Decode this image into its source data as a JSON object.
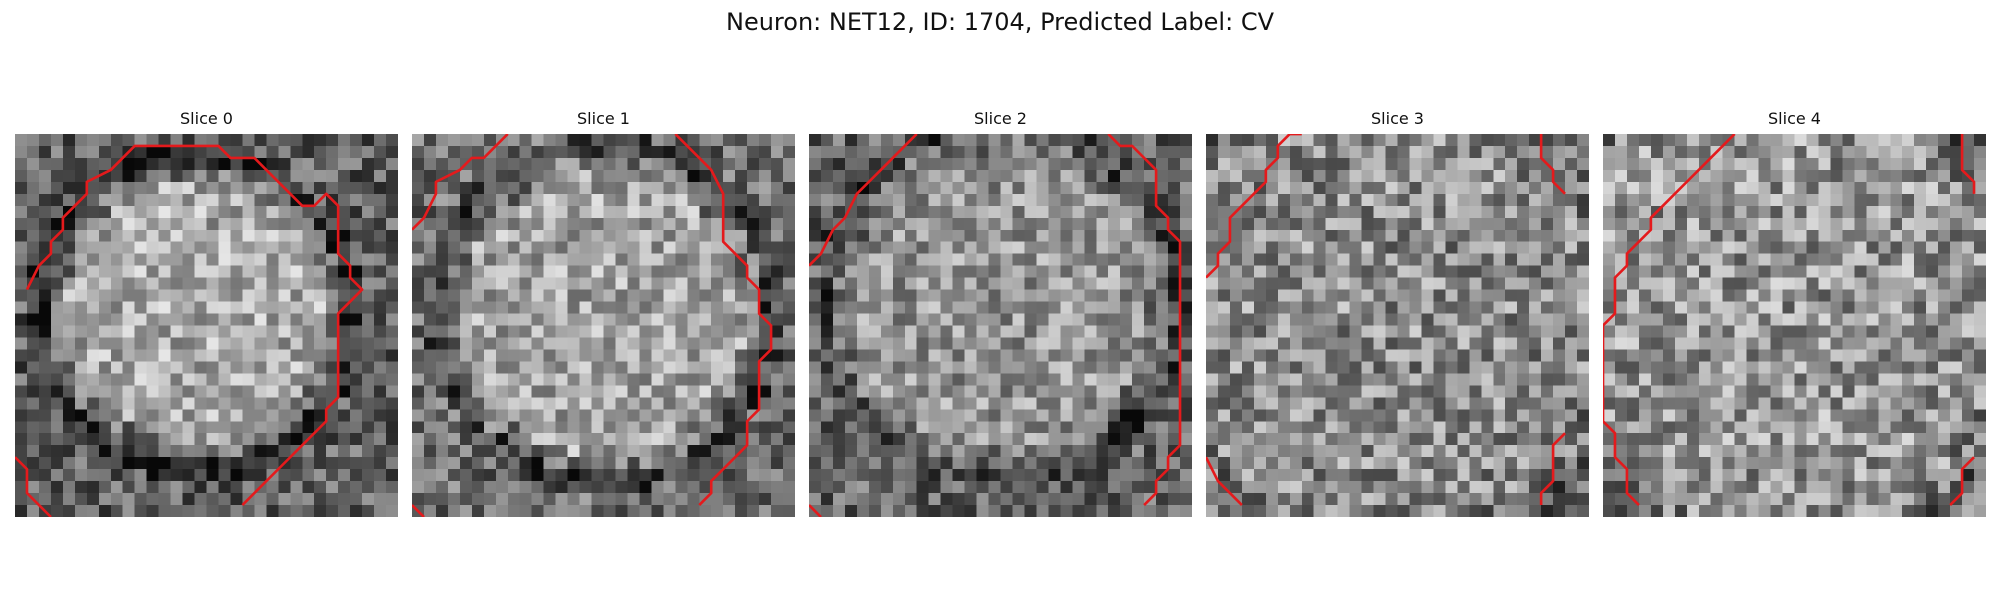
{
  "figure": {
    "title": "Neuron: NET12, ID: 1704, Predicted Label: CV",
    "contour_color": "#e41a1c",
    "grid_size": 32,
    "colormap": "gray"
  },
  "panels": [
    {
      "label": "Slice 0",
      "contours": [
        [
          [
            1,
            13
          ],
          [
            2,
            11
          ],
          [
            3,
            10
          ],
          [
            3,
            9
          ],
          [
            4,
            8
          ],
          [
            4,
            7
          ],
          [
            5,
            6
          ],
          [
            6,
            5
          ],
          [
            6,
            4
          ],
          [
            8,
            3
          ],
          [
            9,
            2
          ],
          [
            10,
            1
          ],
          [
            17,
            1
          ],
          [
            18,
            2
          ],
          [
            20,
            2
          ],
          [
            21,
            3
          ],
          [
            23,
            5
          ],
          [
            24,
            6
          ],
          [
            25,
            6
          ],
          [
            26,
            5
          ],
          [
            27,
            6
          ],
          [
            27,
            10
          ],
          [
            28,
            11
          ],
          [
            28,
            12
          ],
          [
            29,
            13
          ],
          [
            28,
            14
          ],
          [
            27,
            15
          ],
          [
            27,
            22
          ],
          [
            26,
            23
          ],
          [
            26,
            24
          ],
          [
            19,
            31
          ]
        ],
        [
          [
            0,
            27
          ],
          [
            1,
            28
          ],
          [
            1,
            30
          ],
          [
            3,
            32
          ]
        ]
      ]
    },
    {
      "label": "Slice 1",
      "contours": [
        [
          [
            0,
            8
          ],
          [
            1,
            7
          ],
          [
            2,
            5
          ],
          [
            2,
            4
          ],
          [
            4,
            3
          ],
          [
            5,
            2
          ],
          [
            6,
            2
          ],
          [
            8,
            0
          ]
        ],
        [
          [
            22,
            0
          ],
          [
            24,
            2
          ],
          [
            25,
            3
          ],
          [
            26,
            5
          ],
          [
            26,
            9
          ],
          [
            27,
            10
          ],
          [
            28,
            11
          ],
          [
            28,
            12
          ],
          [
            29,
            13
          ],
          [
            29,
            15
          ],
          [
            30,
            16
          ],
          [
            30,
            18
          ],
          [
            29,
            19
          ],
          [
            29,
            23
          ],
          [
            28,
            24
          ],
          [
            28,
            26
          ],
          [
            27,
            27
          ],
          [
            26,
            28
          ],
          [
            25,
            29
          ],
          [
            25,
            30
          ],
          [
            24,
            31
          ]
        ],
        [
          [
            0,
            31
          ],
          [
            1,
            32
          ]
        ]
      ]
    },
    {
      "label": "Slice 2",
      "contours": [
        [
          [
            0,
            11
          ],
          [
            1,
            10
          ],
          [
            2,
            8
          ],
          [
            3,
            7
          ],
          [
            4,
            5
          ],
          [
            5,
            4
          ],
          [
            6,
            3
          ],
          [
            7,
            2
          ],
          [
            8,
            1
          ],
          [
            9,
            0
          ]
        ],
        [
          [
            25,
            0
          ],
          [
            26,
            1
          ],
          [
            27,
            1
          ],
          [
            29,
            3
          ],
          [
            29,
            6
          ],
          [
            30,
            7
          ],
          [
            30,
            8
          ],
          [
            31,
            9
          ],
          [
            31,
            26
          ],
          [
            30,
            27
          ],
          [
            30,
            28
          ],
          [
            29,
            29
          ],
          [
            29,
            30
          ],
          [
            28,
            31
          ]
        ],
        [
          [
            0,
            31
          ],
          [
            1,
            32
          ]
        ]
      ]
    },
    {
      "label": "Slice 3",
      "contours": [
        [
          [
            0,
            12
          ],
          [
            1,
            11
          ],
          [
            1,
            10
          ],
          [
            2,
            9
          ],
          [
            2,
            7
          ],
          [
            3,
            6
          ],
          [
            4,
            5
          ],
          [
            5,
            4
          ],
          [
            5,
            3
          ],
          [
            6,
            2
          ],
          [
            6,
            1
          ],
          [
            7,
            0
          ],
          [
            8,
            0
          ]
        ],
        [
          [
            28,
            0
          ],
          [
            28,
            2
          ],
          [
            29,
            3
          ],
          [
            29,
            4
          ],
          [
            30,
            5
          ]
        ],
        [
          [
            0,
            27
          ],
          [
            1,
            29
          ],
          [
            3,
            31
          ]
        ],
        [
          [
            30,
            25
          ],
          [
            29,
            26
          ],
          [
            29,
            29
          ],
          [
            28,
            30
          ],
          [
            28,
            31
          ]
        ]
      ]
    },
    {
      "label": "Slice 4",
      "contours": [
        [
          [
            11,
            0
          ],
          [
            10,
            1
          ],
          [
            9,
            2
          ],
          [
            8,
            3
          ],
          [
            7,
            4
          ],
          [
            6,
            5
          ],
          [
            5,
            6
          ],
          [
            4,
            7
          ],
          [
            4,
            8
          ],
          [
            3,
            9
          ],
          [
            2,
            10
          ],
          [
            2,
            11
          ],
          [
            1,
            12
          ],
          [
            1,
            15
          ],
          [
            0,
            16
          ],
          [
            0,
            24
          ],
          [
            1,
            25
          ],
          [
            1,
            27
          ],
          [
            2,
            28
          ],
          [
            2,
            30
          ],
          [
            3,
            31
          ]
        ],
        [
          [
            30,
            0
          ],
          [
            30,
            3
          ],
          [
            31,
            4
          ],
          [
            31,
            5
          ]
        ],
        [
          [
            31,
            27
          ],
          [
            30,
            28
          ],
          [
            30,
            30
          ],
          [
            29,
            31
          ]
        ]
      ]
    }
  ]
}
